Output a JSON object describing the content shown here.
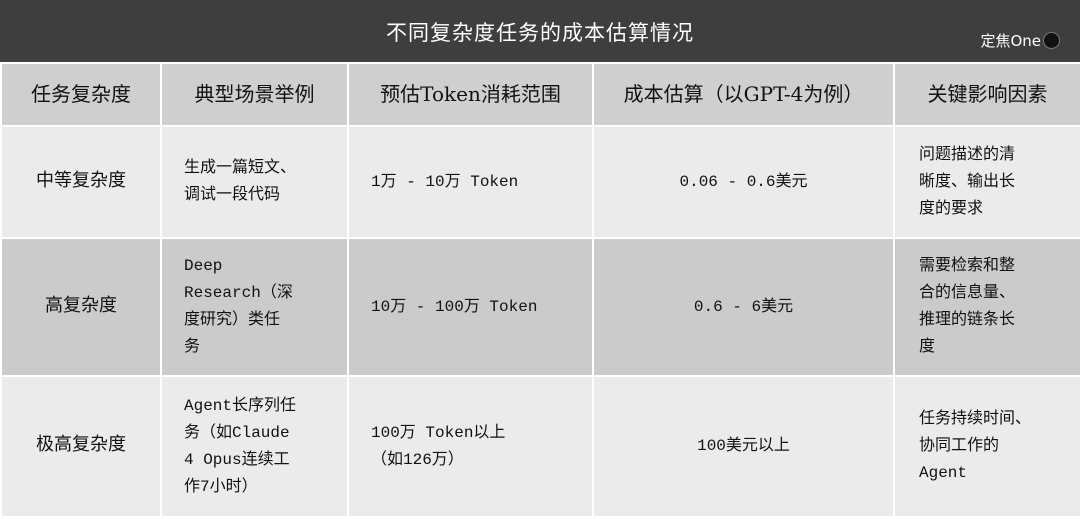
{
  "title": "不同复杂度任务的成本估算情况",
  "logo_text": "定焦One",
  "columns": [
    "任务复杂度",
    "典型场景举例",
    "预估Token消耗范围",
    "成本估算（以GPT-4为例）",
    "关键影响因素"
  ],
  "rows": [
    [
      "中等复杂度",
      "生成一篇短文、\n调试一段代码",
      "1万 - 10万 Token",
      "0.06 - 0.6美元",
      "问题描述的清\n晰度、输出长\n度的要求"
    ],
    [
      "高复杂度",
      "Deep\nResearch（深\n度研究）类任\n务",
      "10万 - 100万 Token",
      "0.6 - 6美元",
      "需要检索和整\n合的信息量、\n推理的链条长\n度"
    ],
    [
      "极高复杂度",
      "Agent长序列任\n务（如Claude\n4 Opus连续工\n作7小时）",
      "100万 Token以上\n（如126万）",
      "100美元以上",
      "任务持续时间、\n协同工作的\nAgent"
    ]
  ]
}
